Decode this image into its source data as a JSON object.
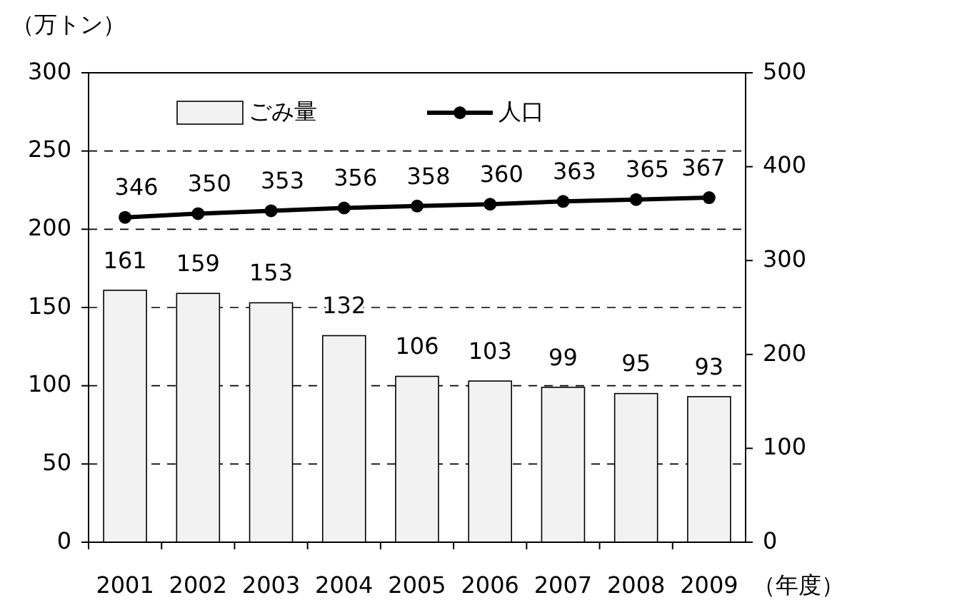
{
  "chart_data": {
    "type": "bar",
    "ylabel": "（万トン）",
    "xlabel": "（年度）",
    "categories": [
      "2001",
      "2002",
      "2003",
      "2004",
      "2005",
      "2006",
      "2007",
      "2008",
      "2009"
    ],
    "series": [
      {
        "name": "ごみ量",
        "color": "#f2f2f2",
        "values": [
          161,
          159,
          153,
          132,
          106,
          103,
          99,
          95,
          93
        ]
      },
      {
        "name": "人口",
        "type": "line",
        "axis": "y2",
        "color": "#000000",
        "values": [
          346,
          350,
          353,
          356,
          358,
          360,
          363,
          365,
          367
        ]
      }
    ],
    "ylim": [
      0,
      300
    ],
    "yticks": [
      0,
      50,
      100,
      150,
      200,
      250,
      300
    ],
    "y2lim": [
      0,
      500
    ],
    "y2ticks": [
      0,
      100,
      200,
      300,
      400,
      500
    ],
    "grid": "y",
    "legend": "top",
    "marker": "circle",
    "line_style": "solid",
    "data_labels": true
  }
}
